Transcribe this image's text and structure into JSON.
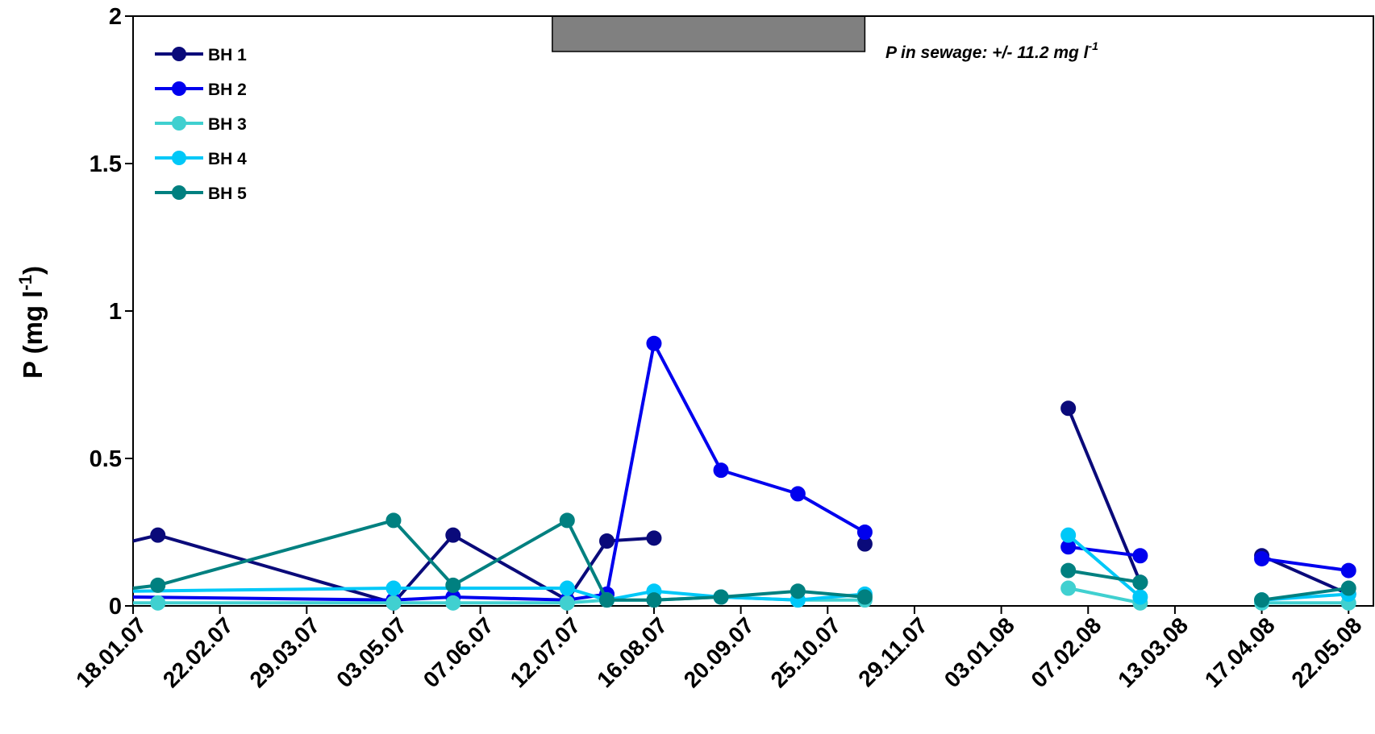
{
  "chart_data": {
    "type": "line",
    "ylabel": "P (mg l-1)",
    "ylabel_main": "P (mg l",
    "ylabel_sup": "-1",
    "ylabel_end": ")",
    "ylim": [
      0,
      2
    ],
    "yticks": [
      0,
      0.5,
      1,
      1.5,
      2
    ],
    "ytick_labels": [
      "0",
      "0.5",
      "1",
      "1.5",
      "2"
    ],
    "xlim": [
      "2007-01-18",
      "2008-06-01"
    ],
    "xticks": [
      "2007-01-18",
      "2007-02-22",
      "2007-03-29",
      "2007-05-03",
      "2007-06-07",
      "2007-07-12",
      "2007-08-16",
      "2007-09-20",
      "2007-10-25",
      "2007-11-29",
      "2008-01-03",
      "2008-02-07",
      "2008-03-13",
      "2008-04-17",
      "2008-05-22"
    ],
    "xtick_labels": [
      "18.01.07",
      "22.02.07",
      "29.03.07",
      "03.05.07",
      "07.06.07",
      "12.07.07",
      "16.08.07",
      "20.09.07",
      "25.10.07",
      "29.11.07",
      "03.01.08",
      "07.02.08",
      "13.03.08",
      "17.04.08",
      "22.05.08"
    ],
    "annotation": {
      "text": "P in sewage: +/- 11.2 mg l",
      "sup": "-1"
    },
    "shaded_period": {
      "start": "2007-07-06",
      "end": "2007-11-09",
      "y_from": 1.88,
      "y_to": 2,
      "color": "#808080"
    },
    "legend_position": "top-left",
    "series": [
      {
        "name": "BH 1",
        "color": "#0A0A7A",
        "segments": [
          [
            {
              "x": "2007-01-18",
              "y": 0.22,
              "marker": false
            },
            {
              "x": "2007-01-28",
              "y": 0.24
            },
            {
              "x": "2007-05-03",
              "y": 0.01
            },
            {
              "x": "2007-05-27",
              "y": 0.24
            },
            {
              "x": "2007-07-12",
              "y": 0.02
            },
            {
              "x": "2007-07-28",
              "y": 0.22
            },
            {
              "x": "2007-08-16",
              "y": 0.23
            }
          ],
          [
            {
              "x": "2007-11-09",
              "y": 0.21
            }
          ],
          [
            {
              "x": "2008-01-30",
              "y": 0.67
            },
            {
              "x": "2008-02-28",
              "y": 0.08
            }
          ],
          [
            {
              "x": "2008-04-17",
              "y": 0.17
            },
            {
              "x": "2008-05-22",
              "y": 0.04
            }
          ]
        ]
      },
      {
        "name": "BH 2",
        "color": "#0000EE",
        "segments": [
          [
            {
              "x": "2007-01-18",
              "y": 0.03,
              "marker": false
            },
            {
              "x": "2007-05-03",
              "y": 0.02
            },
            {
              "x": "2007-05-27",
              "y": 0.03
            },
            {
              "x": "2007-07-12",
              "y": 0.02
            },
            {
              "x": "2007-07-28",
              "y": 0.04
            },
            {
              "x": "2007-08-16",
              "y": 0.89
            },
            {
              "x": "2007-09-12",
              "y": 0.46
            },
            {
              "x": "2007-10-13",
              "y": 0.38
            },
            {
              "x": "2007-11-09",
              "y": 0.25
            }
          ],
          [
            {
              "x": "2008-01-30",
              "y": 0.2
            },
            {
              "x": "2008-02-28",
              "y": 0.17
            }
          ],
          [
            {
              "x": "2008-04-17",
              "y": 0.16
            },
            {
              "x": "2008-05-22",
              "y": 0.12
            }
          ]
        ]
      },
      {
        "name": "BH 3",
        "color": "#40D0D0",
        "segments": [
          [
            {
              "x": "2007-01-18",
              "y": 0.01,
              "marker": false
            },
            {
              "x": "2007-01-28",
              "y": 0.01
            },
            {
              "x": "2007-05-03",
              "y": 0.01
            },
            {
              "x": "2007-05-27",
              "y": 0.01
            },
            {
              "x": "2007-07-12",
              "y": 0.01
            },
            {
              "x": "2007-07-28",
              "y": 0.02
            },
            {
              "x": "2007-08-16",
              "y": 0.02
            },
            {
              "x": "2007-09-12",
              "y": 0.03
            },
            {
              "x": "2007-10-13",
              "y": 0.02
            },
            {
              "x": "2007-11-09",
              "y": 0.02
            }
          ],
          [
            {
              "x": "2008-01-30",
              "y": 0.06
            },
            {
              "x": "2008-02-28",
              "y": 0.01
            }
          ],
          [
            {
              "x": "2008-04-17",
              "y": 0.01
            },
            {
              "x": "2008-05-22",
              "y": 0.01
            }
          ]
        ]
      },
      {
        "name": "BH 4",
        "color": "#00C8F8",
        "segments": [
          [
            {
              "x": "2007-01-18",
              "y": 0.05,
              "marker": false
            },
            {
              "x": "2007-05-03",
              "y": 0.06
            },
            {
              "x": "2007-07-12",
              "y": 0.06
            },
            {
              "x": "2007-07-28",
              "y": 0.02
            },
            {
              "x": "2007-08-16",
              "y": 0.05
            },
            {
              "x": "2007-09-12",
              "y": 0.03
            },
            {
              "x": "2007-10-13",
              "y": 0.02
            },
            {
              "x": "2007-11-09",
              "y": 0.04
            }
          ],
          [
            {
              "x": "2008-01-30",
              "y": 0.24
            },
            {
              "x": "2008-02-28",
              "y": 0.03
            }
          ],
          [
            {
              "x": "2008-04-17",
              "y": 0.02
            },
            {
              "x": "2008-05-22",
              "y": 0.04
            }
          ]
        ]
      },
      {
        "name": "BH 5",
        "color": "#008080",
        "segments": [
          [
            {
              "x": "2007-01-18",
              "y": 0.06,
              "marker": false
            },
            {
              "x": "2007-01-28",
              "y": 0.07
            },
            {
              "x": "2007-05-03",
              "y": 0.29
            },
            {
              "x": "2007-05-27",
              "y": 0.07
            },
            {
              "x": "2007-07-12",
              "y": 0.29
            },
            {
              "x": "2007-07-28",
              "y": 0.02
            },
            {
              "x": "2007-08-16",
              "y": 0.02
            },
            {
              "x": "2007-09-12",
              "y": 0.03
            },
            {
              "x": "2007-10-13",
              "y": 0.05
            },
            {
              "x": "2007-11-09",
              "y": 0.03
            }
          ],
          [
            {
              "x": "2008-01-30",
              "y": 0.12
            },
            {
              "x": "2008-02-28",
              "y": 0.08
            }
          ],
          [
            {
              "x": "2008-04-17",
              "y": 0.02
            },
            {
              "x": "2008-05-22",
              "y": 0.06
            }
          ]
        ]
      }
    ]
  }
}
